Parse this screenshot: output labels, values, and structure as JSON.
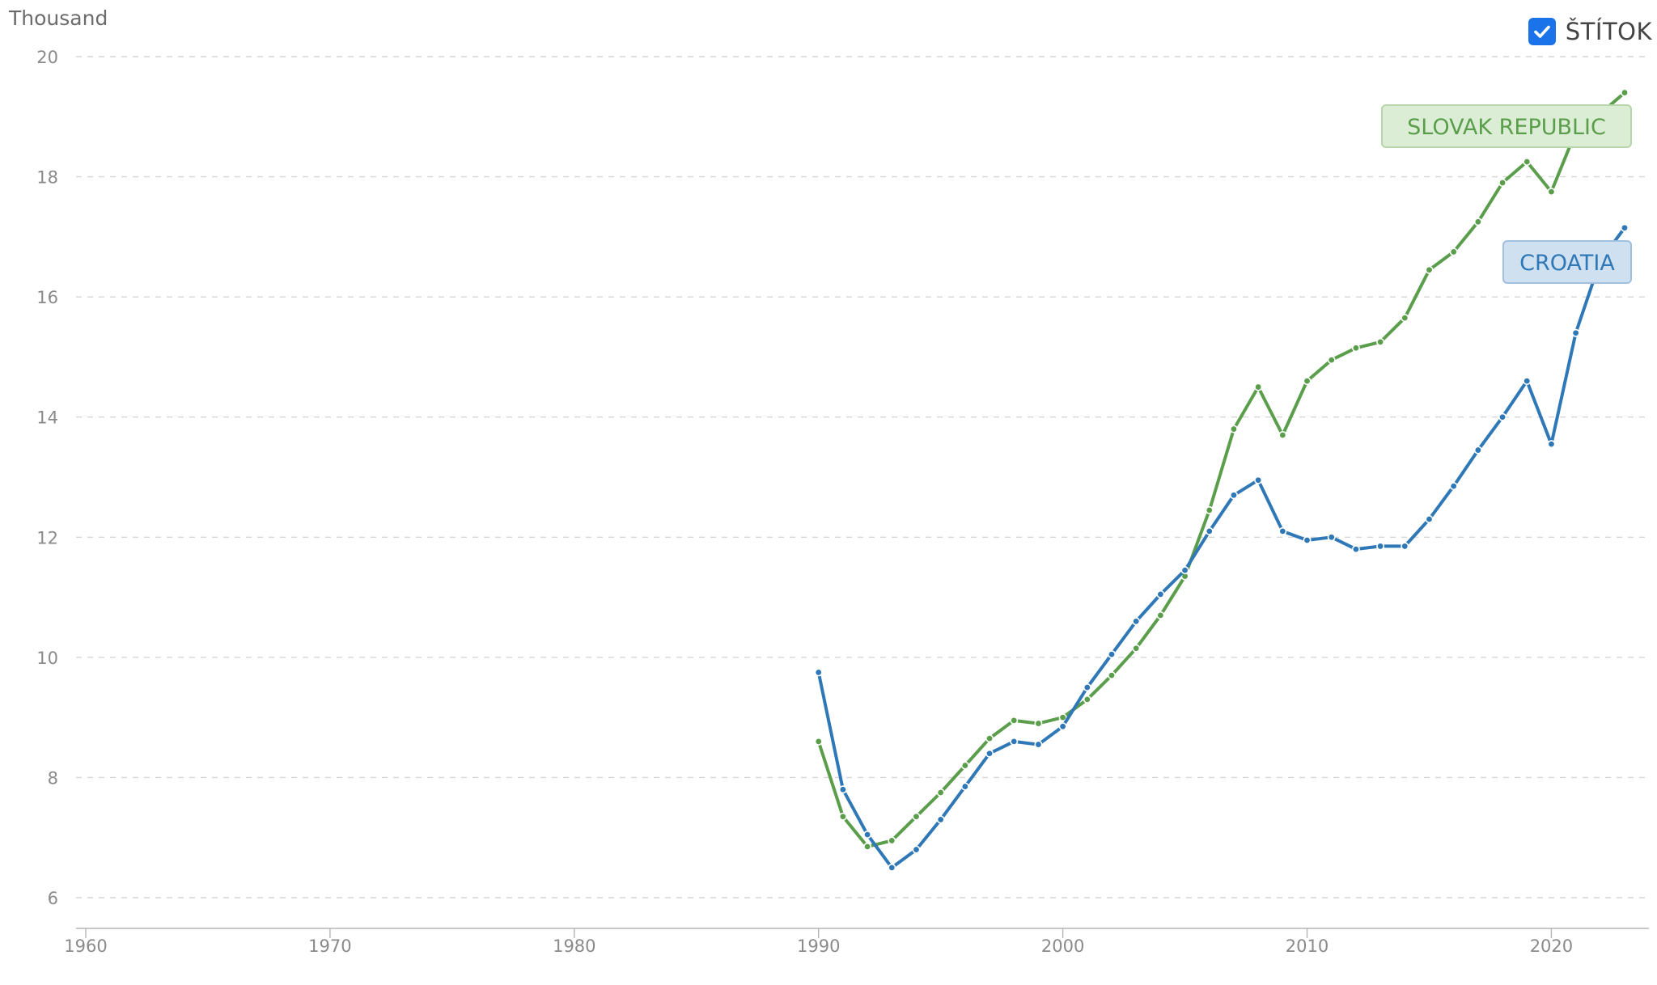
{
  "unit_label": "Thousand",
  "label_toggle": {
    "text": "ŠTÍTOK",
    "checked": true
  },
  "colors": {
    "croatia": "#2f78b7",
    "slovak": "#5a9e4b",
    "grid": "#d6d6d6",
    "tick": "#8a8a8a",
    "checkbox": "#1a73e8"
  },
  "chart_data": {
    "type": "line",
    "xlabel": "",
    "ylabel": "",
    "xlim": [
      1960,
      2023
    ],
    "ylim": [
      6,
      20
    ],
    "x_ticks": [
      1960,
      1970,
      1980,
      1990,
      2000,
      2010,
      2020
    ],
    "y_ticks": [
      6,
      8,
      10,
      12,
      14,
      16,
      18,
      20
    ],
    "grid": true,
    "x": [
      1990,
      1991,
      1992,
      1993,
      1994,
      1995,
      1996,
      1997,
      1998,
      1999,
      2000,
      2001,
      2002,
      2003,
      2004,
      2005,
      2006,
      2007,
      2008,
      2009,
      2010,
      2011,
      2012,
      2013,
      2014,
      2015,
      2016,
      2017,
      2018,
      2019,
      2020,
      2021,
      2022,
      2023
    ],
    "series": [
      {
        "name": "SLOVAK REPUBLIC",
        "color_key": "slovak",
        "values": [
          8.6,
          7.35,
          6.85,
          6.95,
          7.35,
          7.75,
          8.2,
          8.65,
          8.95,
          8.9,
          9.0,
          9.3,
          9.7,
          10.15,
          10.7,
          11.35,
          12.45,
          13.8,
          14.5,
          13.7,
          14.6,
          14.95,
          15.15,
          15.25,
          15.65,
          16.45,
          16.75,
          17.25,
          17.9,
          18.25,
          17.75,
          18.75,
          19.05,
          19.4
        ]
      },
      {
        "name": "CROATIA",
        "color_key": "croatia",
        "values": [
          9.75,
          7.8,
          7.05,
          6.5,
          6.8,
          7.3,
          7.85,
          8.4,
          8.6,
          8.55,
          8.85,
          9.5,
          10.05,
          10.6,
          11.05,
          11.45,
          12.1,
          12.7,
          12.95,
          12.1,
          11.95,
          12.0,
          11.8,
          11.85,
          11.85,
          12.3,
          12.85,
          13.45,
          14.0,
          14.6,
          13.55,
          15.4,
          16.6,
          17.15
        ]
      }
    ],
    "labels": [
      {
        "series": "SLOVAK REPUBLIC",
        "text": "SLOVAK REPUBLIC"
      },
      {
        "series": "CROATIA",
        "text": "CROATIA"
      }
    ]
  }
}
